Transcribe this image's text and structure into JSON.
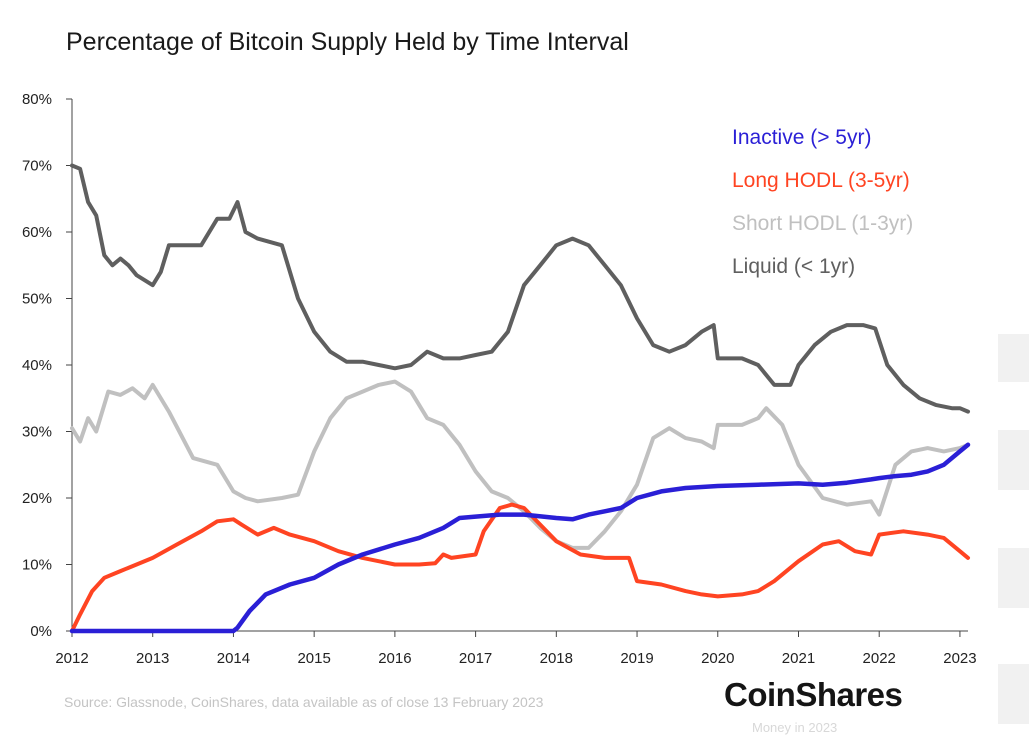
{
  "page": {
    "title": "Percentage of Bitcoin Supply Held by Time Interval"
  },
  "footer": {
    "source": "Source: Glassnode, CoinShares, data available as of close 13 February 2023",
    "brand": "CoinShares",
    "brand_sub": "Money in 2023"
  },
  "colors": {
    "inactive": "#2a1fd6",
    "long_hodl": "#ff4422",
    "short_hodl": "#c0c0c0",
    "liquid": "#5f5f5f",
    "axis": "#444444",
    "text": "#222222"
  },
  "chart_data": {
    "type": "line",
    "title": "Percentage of Bitcoin Supply Held by Time Interval",
    "xlabel": "",
    "ylabel": "",
    "xlim": [
      2012,
      2023.1
    ],
    "ylim": [
      0,
      80
    ],
    "grid": false,
    "legend_position": "top-right",
    "x_ticks": [
      2012,
      2013,
      2014,
      2015,
      2016,
      2017,
      2018,
      2019,
      2020,
      2021,
      2022,
      2023
    ],
    "x_tick_labels": [
      "2012",
      "2013",
      "2014",
      "2015",
      "2016",
      "2017",
      "2018",
      "2019",
      "2020",
      "2021",
      "2022",
      "2023"
    ],
    "y_ticks": [
      0,
      10,
      20,
      30,
      40,
      50,
      60,
      70,
      80
    ],
    "y_tick_labels": [
      "0%",
      "10%",
      "20%",
      "30%",
      "40%",
      "50%",
      "60%",
      "70%",
      "80%"
    ],
    "series": [
      {
        "key": "inactive",
        "name": "Inactive (> 5yr)",
        "x": [
          2012,
          2013,
          2014,
          2014.05,
          2014.2,
          2014.4,
          2014.7,
          2015.0,
          2015.3,
          2015.6,
          2016.0,
          2016.3,
          2016.6,
          2016.8,
          2017.0,
          2017.3,
          2017.6,
          2018.0,
          2018.2,
          2018.4,
          2018.6,
          2018.8,
          2019.0,
          2019.3,
          2019.6,
          2020.0,
          2020.5,
          2021.0,
          2021.3,
          2021.6,
          2021.9,
          2022.0,
          2022.2,
          2022.4,
          2022.6,
          2022.8,
          2023.0,
          2023.1
        ],
        "values": [
          0,
          0,
          0,
          0.5,
          3,
          5.5,
          7,
          8,
          10,
          11.5,
          13,
          14,
          15.5,
          17,
          17.2,
          17.5,
          17.5,
          17,
          16.8,
          17.5,
          18,
          18.5,
          20,
          21,
          21.5,
          21.8,
          22,
          22.2,
          22,
          22.3,
          22.8,
          23,
          23.3,
          23.5,
          24,
          25,
          27,
          28
        ]
      },
      {
        "key": "long_hodl",
        "name": "Long HODL (3-5yr)",
        "x": [
          2012,
          2012.1,
          2012.25,
          2012.4,
          2012.6,
          2012.8,
          2013.0,
          2013.3,
          2013.6,
          2013.8,
          2014.0,
          2014.1,
          2014.3,
          2014.5,
          2014.7,
          2015.0,
          2015.3,
          2015.6,
          2016.0,
          2016.3,
          2016.5,
          2016.6,
          2016.7,
          2017.0,
          2017.1,
          2017.3,
          2017.45,
          2017.6,
          2017.8,
          2018.0,
          2018.3,
          2018.6,
          2018.9,
          2019.0,
          2019.3,
          2019.6,
          2019.8,
          2020.0,
          2020.3,
          2020.5,
          2020.7,
          2021.0,
          2021.3,
          2021.5,
          2021.7,
          2021.9,
          2022.0,
          2022.3,
          2022.6,
          2022.8,
          2023.0,
          2023.1
        ],
        "values": [
          0,
          2.5,
          6,
          8,
          9,
          10,
          11,
          13,
          15,
          16.5,
          16.8,
          16,
          14.5,
          15.5,
          14.5,
          13.5,
          12,
          11,
          10,
          10,
          10.2,
          11.5,
          11,
          11.5,
          15,
          18.5,
          19,
          18.5,
          16,
          13.5,
          11.5,
          11,
          11,
          7.5,
          7,
          6,
          5.5,
          5.2,
          5.5,
          6,
          7.5,
          10.5,
          13,
          13.5,
          12,
          11.5,
          14.5,
          15,
          14.5,
          14,
          12,
          11
        ]
      },
      {
        "key": "short_hodl",
        "name": "Short HODL (1-3yr)",
        "x": [
          2012,
          2012.1,
          2012.2,
          2012.3,
          2012.45,
          2012.6,
          2012.75,
          2012.9,
          2013.0,
          2013.2,
          2013.5,
          2013.8,
          2014.0,
          2014.15,
          2014.3,
          2014.6,
          2014.8,
          2015.0,
          2015.2,
          2015.4,
          2015.6,
          2015.8,
          2016.0,
          2016.2,
          2016.4,
          2016.6,
          2016.8,
          2017.0,
          2017.2,
          2017.4,
          2017.6,
          2017.8,
          2018.0,
          2018.2,
          2018.4,
          2018.6,
          2018.8,
          2019.0,
          2019.2,
          2019.4,
          2019.6,
          2019.8,
          2019.95,
          2020.0,
          2020.3,
          2020.5,
          2020.6,
          2020.8,
          2021.0,
          2021.3,
          2021.6,
          2021.9,
          2022.0,
          2022.2,
          2022.4,
          2022.6,
          2022.8,
          2023.0,
          2023.1
        ],
        "values": [
          30.5,
          28.5,
          32,
          30,
          36,
          35.5,
          36.5,
          35,
          37,
          33,
          26,
          25,
          21,
          20,
          19.5,
          20,
          20.5,
          27,
          32,
          35,
          36,
          37,
          37.5,
          36,
          32,
          31,
          28,
          24,
          21,
          20,
          18,
          15.5,
          13.5,
          12.5,
          12.5,
          15,
          18,
          22,
          29,
          30.5,
          29,
          28.5,
          27.5,
          31,
          31,
          32,
          33.5,
          31,
          25,
          20,
          19,
          19.5,
          17.5,
          25,
          27,
          27.5,
          27,
          27.5,
          28
        ]
      },
      {
        "key": "liquid",
        "name": "Liquid (< 1yr)",
        "x": [
          2012,
          2012.1,
          2012.2,
          2012.3,
          2012.4,
          2012.5,
          2012.6,
          2012.7,
          2012.8,
          2013.0,
          2013.1,
          2013.2,
          2013.4,
          2013.6,
          2013.8,
          2013.95,
          2014.05,
          2014.15,
          2014.3,
          2014.6,
          2014.8,
          2015.0,
          2015.2,
          2015.4,
          2015.6,
          2015.8,
          2016.0,
          2016.2,
          2016.4,
          2016.6,
          2016.8,
          2017.0,
          2017.2,
          2017.4,
          2017.6,
          2017.8,
          2018.0,
          2018.2,
          2018.4,
          2018.6,
          2018.8,
          2019.0,
          2019.2,
          2019.4,
          2019.6,
          2019.8,
          2019.95,
          2020.0,
          2020.3,
          2020.5,
          2020.7,
          2020.9,
          2021.0,
          2021.2,
          2021.4,
          2021.6,
          2021.8,
          2021.95,
          2022.1,
          2022.3,
          2022.5,
          2022.7,
          2022.9,
          2023.0,
          2023.1
        ],
        "values": [
          70,
          69.5,
          64.5,
          62.5,
          56.5,
          55,
          56,
          55,
          53.5,
          52,
          54,
          58,
          58,
          58,
          62,
          62,
          64.5,
          60,
          59,
          58,
          50,
          45,
          42,
          40.5,
          40.5,
          40,
          39.5,
          40,
          42,
          41,
          41,
          41.5,
          42,
          45,
          52,
          55,
          58,
          59,
          58,
          55,
          52,
          47,
          43,
          42,
          43,
          45,
          46,
          41,
          41,
          40,
          37,
          37,
          40,
          43,
          45,
          46,
          46,
          45.5,
          40,
          37,
          35,
          34,
          33.5,
          33.5,
          33
        ]
      }
    ]
  }
}
